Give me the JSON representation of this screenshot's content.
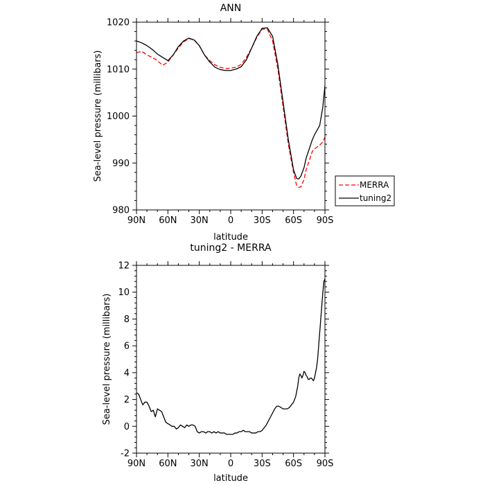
{
  "chart_data": [
    {
      "type": "line",
      "title": "ANN",
      "xlabel": "latitude",
      "ylabel": "Sea-level pressure (millibars)",
      "xlim": [
        -90,
        90
      ],
      "ylim": [
        980,
        1020
      ],
      "x_ticks": [
        -90,
        -60,
        -30,
        0,
        30,
        60,
        90
      ],
      "x_tick_labels": [
        "90N",
        "60N",
        "30N",
        "0",
        "30S",
        "60S",
        "90S"
      ],
      "y_ticks": [
        980,
        990,
        1000,
        1010,
        1020
      ],
      "y_tick_labels": [
        "980",
        "990",
        "1000",
        "1010",
        "1020"
      ],
      "legend": {
        "position": "right, outside plot",
        "entries": [
          "MERRA",
          "tuning2"
        ]
      },
      "series": [
        {
          "name": "MERRA",
          "color": "#ff0000",
          "dash": "dashed",
          "x": [
            -90,
            -85,
            -80,
            -75,
            -70,
            -65,
            -60,
            -55,
            -50,
            -45,
            -40,
            -35,
            -30,
            -25,
            -20,
            -15,
            -10,
            -5,
            0,
            5,
            10,
            15,
            20,
            25,
            30,
            35,
            40,
            45,
            50,
            55,
            60,
            63,
            65,
            67,
            70,
            72,
            75,
            78,
            80,
            85,
            88,
            90
          ],
          "y": [
            1013.5,
            1013.8,
            1013,
            1012.5,
            1011.8,
            1010.8,
            1011.5,
            1013,
            1014.5,
            1015.8,
            1016.5,
            1016.3,
            1015,
            1013,
            1011.8,
            1010.9,
            1010.4,
            1010.1,
            1010.2,
            1010.4,
            1011,
            1012.5,
            1014.5,
            1016.8,
            1018.5,
            1018.5,
            1016,
            1010,
            1002,
            994,
            988,
            985.2,
            984.8,
            984.9,
            986.5,
            988.5,
            990.5,
            992.5,
            993,
            993.8,
            994.5,
            995.5
          ]
        },
        {
          "name": "tuning2",
          "color": "#000000",
          "dash": "solid",
          "x": [
            -90,
            -85,
            -80,
            -75,
            -70,
            -65,
            -60,
            -55,
            -50,
            -45,
            -40,
            -35,
            -30,
            -25,
            -20,
            -15,
            -10,
            -5,
            0,
            5,
            10,
            15,
            20,
            25,
            30,
            35,
            40,
            45,
            50,
            55,
            60,
            63,
            65,
            67,
            70,
            72,
            75,
            78,
            80,
            85,
            88,
            90
          ],
          "y": [
            1016,
            1015.6,
            1015,
            1014.2,
            1013.2,
            1012.5,
            1011.8,
            1013,
            1014.8,
            1016,
            1016.6,
            1016.2,
            1015,
            1013,
            1011.5,
            1010.4,
            1009.9,
            1009.7,
            1009.7,
            1010,
            1010.5,
            1012,
            1014.5,
            1017,
            1018.7,
            1018.8,
            1017,
            1011,
            1003,
            995,
            988.5,
            986.7,
            986.6,
            987.2,
            989,
            991,
            993,
            995,
            996,
            998,
            1002,
            1006.5
          ]
        }
      ]
    },
    {
      "type": "line",
      "title": "tuning2 - MERRA",
      "xlabel": "latitude",
      "ylabel": "Sea-level pressure (millibars)",
      "xlim": [
        -90,
        90
      ],
      "ylim": [
        -2,
        12
      ],
      "x_ticks": [
        -90,
        -60,
        -30,
        0,
        30,
        60,
        90
      ],
      "x_tick_labels": [
        "90N",
        "60N",
        "30N",
        "0",
        "30S",
        "60S",
        "90S"
      ],
      "y_ticks": [
        -2,
        0,
        2,
        4,
        6,
        8,
        10,
        12
      ],
      "y_tick_labels": [
        "-2",
        "0",
        "2",
        "4",
        "6",
        "8",
        "10",
        "12"
      ],
      "series": [
        {
          "color": "#000000",
          "dash": "solid",
          "x": [
            -90,
            -88,
            -86,
            -84,
            -82,
            -80,
            -78,
            -76,
            -74,
            -72,
            -70,
            -68,
            -66,
            -64,
            -62,
            -60,
            -58,
            -56,
            -54,
            -52,
            -50,
            -48,
            -46,
            -44,
            -42,
            -40,
            -38,
            -36,
            -34,
            -32,
            -30,
            -28,
            -26,
            -24,
            -22,
            -20,
            -18,
            -16,
            -14,
            -12,
            -10,
            -8,
            -6,
            -4,
            -2,
            0,
            2,
            4,
            6,
            8,
            10,
            12,
            14,
            16,
            18,
            20,
            22,
            24,
            26,
            28,
            30,
            32,
            34,
            36,
            38,
            40,
            42,
            44,
            46,
            48,
            50,
            52,
            54,
            56,
            58,
            60,
            62,
            64,
            65,
            66,
            67,
            68,
            69,
            70,
            71,
            72,
            73,
            74,
            75,
            76,
            77,
            78,
            79,
            80,
            81,
            82,
            83,
            84,
            85,
            86,
            87,
            88,
            89,
            90
          ],
          "y": [
            2.5,
            2.4,
            2,
            1.6,
            1.8,
            1.8,
            1.5,
            1.1,
            1.2,
            0.7,
            1.3,
            1.2,
            1.1,
            0.7,
            0.3,
            0.2,
            0.1,
            0,
            0,
            -0.2,
            -0.1,
            0.1,
            0,
            -0.1,
            0.1,
            0,
            0.1,
            0.1,
            0,
            -0.4,
            -0.5,
            -0.4,
            -0.4,
            -0.5,
            -0.4,
            -0.4,
            -0.5,
            -0.4,
            -0.5,
            -0.4,
            -0.5,
            -0.5,
            -0.5,
            -0.6,
            -0.6,
            -0.6,
            -0.6,
            -0.5,
            -0.5,
            -0.4,
            -0.4,
            -0.3,
            -0.4,
            -0.4,
            -0.4,
            -0.5,
            -0.5,
            -0.5,
            -0.4,
            -0.4,
            -0.3,
            -0.1,
            0.1,
            0.4,
            0.7,
            1,
            1.3,
            1.5,
            1.5,
            1.4,
            1.3,
            1.3,
            1.3,
            1.4,
            1.6,
            1.8,
            2.2,
            3,
            3.6,
            3.9,
            3.8,
            3.6,
            3.8,
            4.1,
            4,
            3.8,
            3.7,
            3.5,
            3.5,
            3.6,
            3.6,
            3.5,
            3.4,
            3.6,
            4,
            4.4,
            5,
            6,
            7,
            8,
            9,
            10,
            10.8,
            11
          ]
        }
      ]
    }
  ]
}
